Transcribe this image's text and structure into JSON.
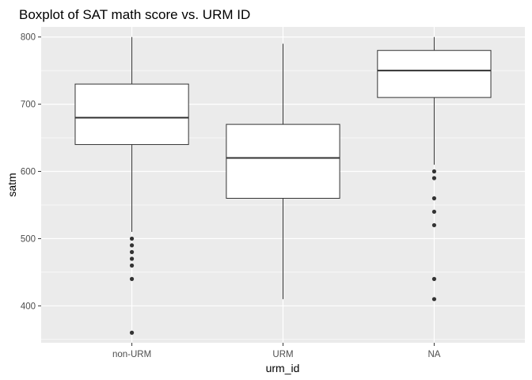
{
  "chart_data": {
    "type": "boxplot",
    "title": "Boxplot of SAT math score vs. URM ID",
    "xlabel": "urm_id",
    "ylabel": "satm",
    "categories": [
      "non-URM",
      "URM",
      "NA"
    ],
    "ylim": [
      345,
      815
    ],
    "yticks": [
      400,
      500,
      600,
      700,
      800
    ],
    "grid": true,
    "boxes": [
      {
        "category": "non-URM",
        "whisker_low": 510,
        "q1": 640,
        "median": 680,
        "q3": 730,
        "whisker_high": 800,
        "outliers": [
          500,
          490,
          480,
          470,
          460,
          440,
          360
        ]
      },
      {
        "category": "URM",
        "whisker_low": 410,
        "q1": 560,
        "median": 620,
        "q3": 670,
        "whisker_high": 790,
        "outliers": []
      },
      {
        "category": "NA",
        "whisker_low": 610,
        "q1": 710,
        "median": 750,
        "q3": 780,
        "whisker_high": 800,
        "outliers": [
          600,
          590,
          560,
          540,
          520,
          440,
          410
        ]
      }
    ],
    "colors": {
      "panel": "#ebebeb",
      "grid": "#ffffff",
      "box_fill": "#ffffff",
      "box_line": "#333333",
      "outlier": "#333333"
    }
  }
}
